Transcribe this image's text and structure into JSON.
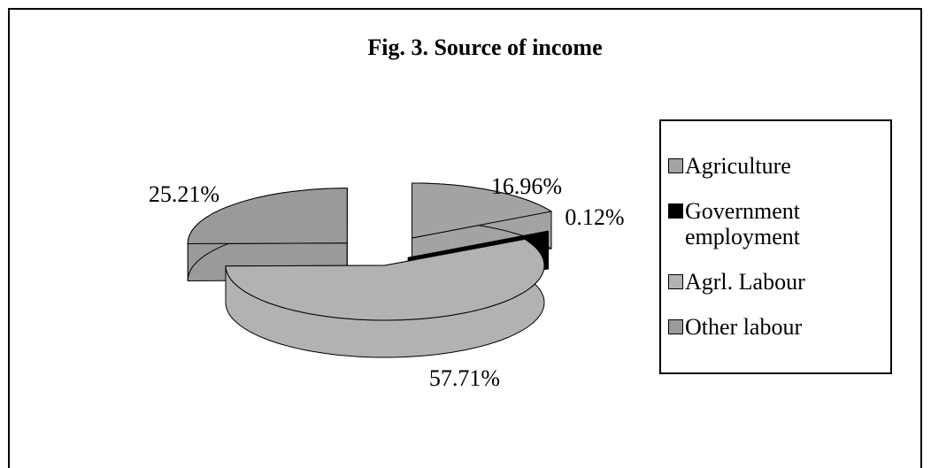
{
  "chart_data": {
    "type": "pie3d",
    "title": "Fig. 3. Source of income",
    "categories": [
      "Agriculture",
      "Government employment",
      "Agrl. Labour",
      "Other labour"
    ],
    "values": [
      16.96,
      0.12,
      57.71,
      25.21
    ],
    "value_labels": [
      "16.96%",
      "0.12%",
      "57.71%",
      "25.21%"
    ],
    "colors": [
      "#a3a3a3",
      "#000000",
      "#b2b2b2",
      "#9a9a9a"
    ],
    "legend": "right"
  }
}
